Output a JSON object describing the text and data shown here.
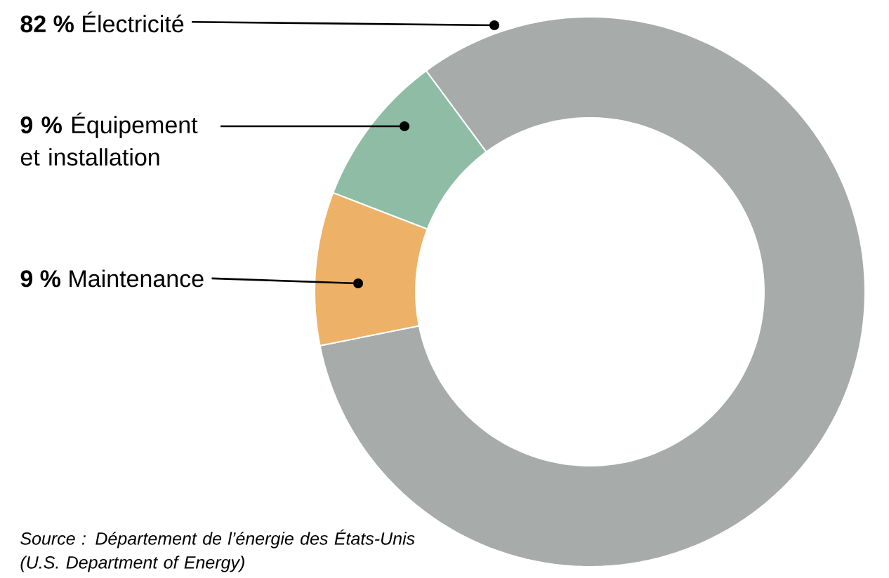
{
  "chart_data": {
    "type": "donut",
    "categories": [
      "Électricité",
      "Équipement et installation",
      "Maintenance"
    ],
    "values": [
      82,
      9,
      9
    ],
    "colors": [
      "#a7abaa",
      "#8fbca5",
      "#edb167"
    ],
    "value_labels": [
      "82 %",
      "9 %",
      "9 %"
    ],
    "annotations": [
      "Source : Département de l’énergie des États-Unis (U.S. Department of Energy)"
    ]
  }
}
